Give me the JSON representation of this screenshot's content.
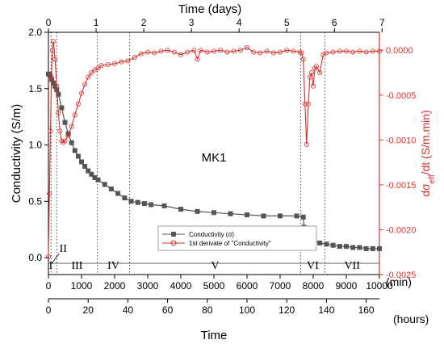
{
  "chart_data": {
    "type": "scatter",
    "annotation": "MK1",
    "axes": {
      "x_bottom": {
        "label": "Time",
        "unit": "(min)",
        "range": [
          0,
          10000
        ],
        "ticks": [
          0,
          1000,
          2000,
          3000,
          4000,
          5000,
          6000,
          7000,
          8000,
          9000,
          10000
        ]
      },
      "x_hours": {
        "unit": "(hours)",
        "range": [
          0,
          166.67
        ],
        "ticks": [
          0,
          20,
          40,
          60,
          80,
          100,
          120,
          140,
          160
        ]
      },
      "x_top": {
        "label": "Time (days)",
        "range": [
          0,
          6.944
        ],
        "ticks": [
          0,
          1,
          2,
          3,
          4,
          5,
          6,
          7
        ]
      },
      "y_left": {
        "label": "Conductivity (S/m)",
        "range": [
          -0.15,
          2.0
        ],
        "ticks": [
          0.0,
          0.5,
          1.0,
          1.5,
          2.0
        ]
      },
      "y_right": {
        "label": "dσeff/dt (S/m.min)",
        "range": [
          -0.0025,
          0.0002
        ],
        "ticks": [
          0.0,
          -0.0005,
          -0.001,
          -0.0015,
          -0.002,
          -0.0025
        ]
      }
    },
    "legend": {
      "placement": "lower-center",
      "items": [
        "Conductivity (σ)",
        "1st derivate of \"Conductivity\""
      ]
    },
    "phases": {
      "boundaries_min": [
        80,
        250,
        1480,
        2450,
        7620,
        8350
      ],
      "labels": [
        "I",
        "II",
        "III",
        "IV",
        "V",
        "VI",
        "VII"
      ]
    },
    "colors": {
      "conductivity": "#555555",
      "derivative": "#d9302c"
    },
    "series": [
      {
        "name": "Conductivity (σ)",
        "axis": "left",
        "x": [
          0,
          50,
          100,
          150,
          200,
          250,
          300,
          400,
          500,
          600,
          700,
          800,
          900,
          1000,
          1100,
          1200,
          1300,
          1400,
          1500,
          1700,
          1900,
          2100,
          2300,
          2500,
          2700,
          2900,
          3100,
          3500,
          4000,
          4500,
          5000,
          5500,
          6000,
          6500,
          7000,
          7500,
          7700,
          7720,
          7800,
          7900,
          8000,
          8200,
          8400,
          8600,
          8800,
          9000,
          9200,
          9400,
          9600,
          9800,
          10000
        ],
        "y": [
          1.63,
          1.62,
          1.58,
          1.55,
          1.52,
          1.49,
          1.45,
          1.33,
          1.2,
          1.1,
          1.02,
          0.95,
          0.9,
          0.85,
          0.81,
          0.77,
          0.74,
          0.71,
          0.69,
          0.65,
          0.61,
          0.57,
          0.53,
          0.5,
          0.49,
          0.48,
          0.47,
          0.46,
          0.43,
          0.41,
          0.4,
          0.39,
          0.38,
          0.37,
          0.37,
          0.37,
          0.36,
          0.27,
          0.22,
          0.18,
          0.15,
          0.13,
          0.12,
          0.11,
          0.1,
          0.1,
          0.09,
          0.09,
          0.08,
          0.08,
          0.08
        ]
      },
      {
        "name": "1st derivate of \"Conductivity\"",
        "axis": "right",
        "x": [
          0,
          30,
          60,
          90,
          120,
          150,
          200,
          250,
          300,
          350,
          400,
          450,
          500,
          600,
          700,
          800,
          900,
          1000,
          1100,
          1200,
          1300,
          1400,
          1500,
          1600,
          1800,
          2000,
          2200,
          2400,
          2600,
          2800,
          3000,
          3200,
          3400,
          3600,
          3800,
          4000,
          4200,
          4400,
          4500,
          4600,
          4800,
          5000,
          5200,
          5400,
          5600,
          5800,
          6000,
          6200,
          6400,
          6600,
          6800,
          7000,
          7200,
          7400,
          7600,
          7650,
          7700,
          7750,
          7800,
          7850,
          7900,
          7950,
          8000,
          8050,
          8100,
          8200,
          8300,
          8400,
          8600,
          8800,
          9000,
          9200,
          9400,
          9600,
          9800,
          10000
        ],
        "y": [
          -0.0023,
          -0.0016,
          -0.0009,
          -0.0003,
          0.0,
          0.0001,
          -0.0001,
          -0.0004,
          -0.0007,
          -0.0009,
          -0.00101,
          -0.00103,
          -0.00101,
          -0.00095,
          -0.00085,
          -0.00072,
          -0.0006,
          -0.00048,
          -0.00038,
          -0.0003,
          -0.00025,
          -0.00022,
          -0.0002,
          -0.00017,
          -0.00016,
          -0.00015,
          -0.00013,
          -0.00012,
          -8e-05,
          -4e-05,
          -2e-05,
          -3e-05,
          -1e-05,
          0.0,
          -2e-05,
          -5e-05,
          -2e-05,
          0.0,
          -0.0001,
          0.0,
          -2e-05,
          -1e-05,
          0.0,
          -2e-05,
          -1e-05,
          0.0,
          3e-05,
          -2e-05,
          -3e-05,
          -1e-05,
          -3e-05,
          -2e-05,
          0.0,
          -1e-05,
          -2e-05,
          -3e-05,
          -0.0001,
          -0.0006,
          -0.00105,
          -0.0006,
          -0.0003,
          -0.00025,
          -0.0004,
          -0.0002,
          -0.00018,
          -0.00025,
          -5e-05,
          -3e-05,
          -2e-05,
          -1e-05,
          -1e-05,
          -2e-05,
          -1e-05,
          -2e-05,
          -1e-05,
          -1e-05
        ]
      }
    ]
  }
}
